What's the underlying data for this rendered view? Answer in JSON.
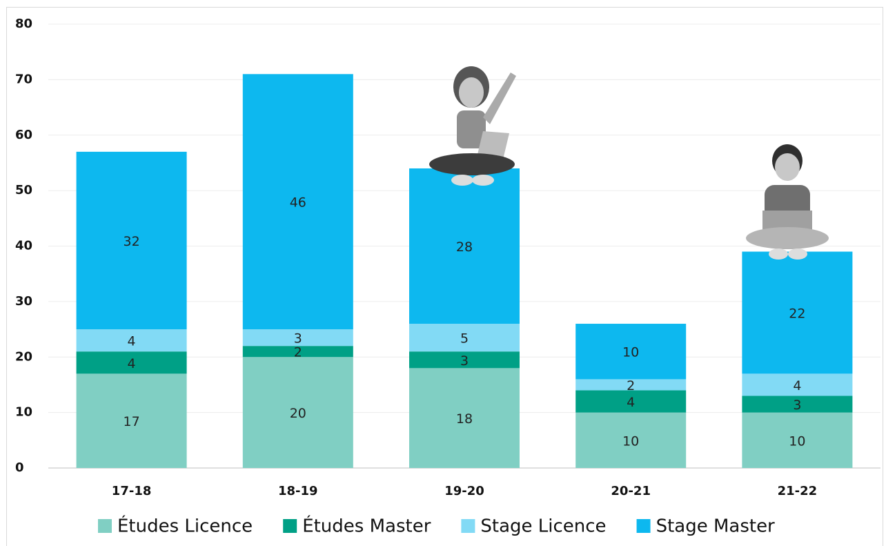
{
  "chart_data": {
    "type": "stacked-bar",
    "categories": [
      "17-18",
      "18-19",
      "19-20",
      "20-21",
      "21-22"
    ],
    "series": [
      {
        "name": "Études Licence",
        "color": "#80cfc3",
        "values": [
          17,
          20,
          18,
          10,
          10
        ]
      },
      {
        "name": "Études Master",
        "color": "#00a086",
        "values": [
          4,
          2,
          3,
          4,
          3
        ]
      },
      {
        "name": "Stage Licence",
        "color": "#82daf5",
        "values": [
          4,
          3,
          5,
          2,
          4
        ]
      },
      {
        "name": "Stage Master",
        "color": "#0db8ef",
        "values": [
          32,
          46,
          28,
          10,
          22
        ]
      }
    ],
    "ylim": [
      0,
      80
    ],
    "yticks": [
      0,
      10,
      20,
      30,
      40,
      50,
      60,
      70,
      80
    ],
    "grid": true
  }
}
